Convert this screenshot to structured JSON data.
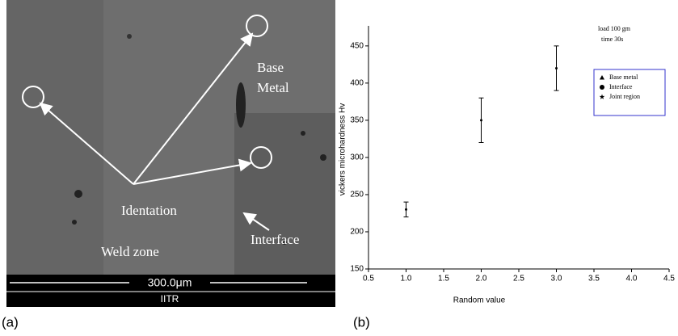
{
  "panels": {
    "a": "(a)",
    "b": "(b)"
  },
  "micrograph": {
    "base_metal": [
      "Base",
      "Metal"
    ],
    "indentation": "Identation",
    "weld_zone": "Weld zone",
    "interface": "Interface",
    "scale": "300.0μm",
    "lab": "IITR"
  },
  "chart_data": {
    "type": "errorbar",
    "x_label": "Random value",
    "y_label": "vickers microhardness Hv",
    "annotations": [
      "load 100 gm",
      "time 30s"
    ],
    "x": [
      1,
      2,
      3
    ],
    "values": [
      230,
      350,
      420
    ],
    "errors": [
      10,
      30,
      30
    ],
    "color": "#000000",
    "legend": [
      {
        "label": "Base metal",
        "marker": "triangle"
      },
      {
        "label": "Interface",
        "marker": "circle"
      },
      {
        "label": "Joint region",
        "marker": "star"
      }
    ],
    "xlim": [
      0.5,
      4.5
    ],
    "ylim": [
      150,
      477
    ],
    "xticks": [
      0.5,
      {
        "value": 1,
        "label": "1.0"
      },
      1.5,
      {
        "value": 2,
        "label": "2.0"
      },
      2.5,
      {
        "value": 3,
        "label": "3.0"
      },
      3.5,
      {
        "value": 4,
        "label": "4.0"
      },
      4.5
    ],
    "yticks": [
      150,
      200,
      250,
      300,
      350,
      400,
      450
    ]
  }
}
